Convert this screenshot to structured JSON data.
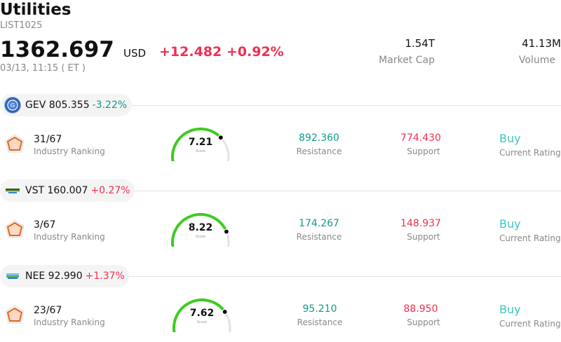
{
  "header": {
    "title": "Utilities",
    "code": "LIST1025",
    "price": "1362.697",
    "currency": "USD",
    "change_abs": "+12.482",
    "change_pct": "+0.92%",
    "timestamp": "03/13, 11:15  ( ET )",
    "market_cap_value": "1.54T",
    "market_cap_label": "Market Cap",
    "volume_value": "41.13M",
    "volume_label": "Volume"
  },
  "colors": {
    "up": "#f0304f",
    "down": "#0f9b8e",
    "rating": "#3ec5c2",
    "gauge_arc": "#3dcc1f"
  },
  "stocks": [
    {
      "symbol_price": "GEV 805.355",
      "change": "-3.22%",
      "direction": "down",
      "logo": "ge-vernova-logo",
      "ranking": "31/67",
      "ranking_label": "Industry Ranking",
      "score": "7.21",
      "score_label": "Score",
      "score_fraction": 0.721,
      "resistance": "892.360",
      "resistance_label": "Resistance",
      "support": "774.430",
      "support_label": "Support",
      "rating": "Buy",
      "rating_label": "Current Rating"
    },
    {
      "symbol_price": "VST 160.007",
      "change": "+0.27%",
      "direction": "up",
      "logo": "vistra-logo",
      "ranking": "3/67",
      "ranking_label": "Industry Ranking",
      "score": "8.22",
      "score_label": "Score",
      "score_fraction": 0.822,
      "resistance": "174.267",
      "resistance_label": "Resistance",
      "support": "148.937",
      "support_label": "Support",
      "rating": "Buy",
      "rating_label": "Current Rating"
    },
    {
      "symbol_price": "NEE 92.990",
      "change": "+1.37%",
      "direction": "up",
      "logo": "nextera-logo",
      "ranking": "23/67",
      "ranking_label": "Industry Ranking",
      "score": "7.62",
      "score_label": "Score",
      "score_fraction": 0.762,
      "resistance": "95.210",
      "resistance_label": "Resistance",
      "support": "88.950",
      "support_label": "Support",
      "rating": "Buy",
      "rating_label": "Current Rating"
    }
  ]
}
